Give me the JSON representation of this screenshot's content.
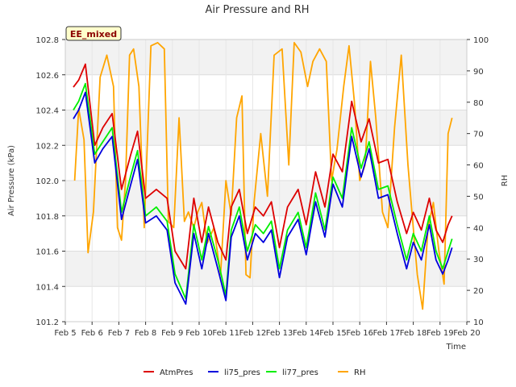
{
  "chart_data": {
    "type": "line",
    "title": "Air Pressure and RH",
    "xlabel": "Time",
    "ylabel": "Air Pressure (kPa)",
    "y2label": "RH",
    "annotation": "EE_mixed",
    "xlim": [
      5,
      20
    ],
    "ylim": [
      101.2,
      102.8
    ],
    "y2lim": [
      10,
      100
    ],
    "x_ticks": [
      {
        "v": 5,
        "label": "Feb 5"
      },
      {
        "v": 6,
        "label": "Feb 6"
      },
      {
        "v": 7,
        "label": "Feb 7"
      },
      {
        "v": 8,
        "label": "Feb 8"
      },
      {
        "v": 9,
        "label": "Feb 9"
      },
      {
        "v": 10,
        "label": "Feb 10"
      },
      {
        "v": 11,
        "label": "Feb 11"
      },
      {
        "v": 12,
        "label": "Feb 12"
      },
      {
        "v": 13,
        "label": "Feb 13"
      },
      {
        "v": 14,
        "label": "Feb 14"
      },
      {
        "v": 15,
        "label": "Feb 15"
      },
      {
        "v": 16,
        "label": "Feb 16"
      },
      {
        "v": 17,
        "label": "Feb 17"
      },
      {
        "v": 18,
        "label": "Feb 18"
      },
      {
        "v": 19,
        "label": "Feb 19"
      },
      {
        "v": 20,
        "label": "Feb 20"
      }
    ],
    "y_ticks": [
      "101.2",
      "101.4",
      "101.6",
      "101.8",
      "102.0",
      "102.2",
      "102.4",
      "102.6",
      "102.8"
    ],
    "y2_ticks": [
      "10",
      "20",
      "30",
      "40",
      "50",
      "60",
      "70",
      "80",
      "90",
      "100"
    ],
    "grid": true,
    "legend_position": "bottom",
    "series": [
      {
        "name": "AtmPres",
        "color": "#dd0000",
        "axis": "left",
        "x": [
          5.3,
          5.5,
          5.75,
          6.1,
          6.4,
          6.75,
          7.1,
          7.45,
          7.7,
          8.0,
          8.4,
          8.8,
          9.1,
          9.5,
          9.8,
          10.1,
          10.35,
          10.7,
          11.0,
          11.2,
          11.5,
          11.8,
          12.1,
          12.4,
          12.7,
          13.0,
          13.3,
          13.7,
          14.0,
          14.35,
          14.7,
          15.0,
          15.35,
          15.7,
          16.05,
          16.35,
          16.7,
          17.05,
          17.4,
          17.75,
          18.0,
          18.3,
          18.6,
          18.85,
          19.1,
          19.3,
          19.45
        ],
        "y": [
          102.53,
          102.57,
          102.66,
          102.2,
          102.3,
          102.38,
          101.95,
          102.15,
          102.28,
          101.9,
          101.95,
          101.9,
          101.6,
          101.5,
          101.9,
          101.65,
          101.85,
          101.65,
          101.55,
          101.85,
          101.95,
          101.7,
          101.85,
          101.8,
          101.88,
          101.62,
          101.85,
          101.95,
          101.75,
          102.05,
          101.85,
          102.15,
          102.05,
          102.45,
          102.22,
          102.35,
          102.1,
          102.12,
          101.88,
          101.7,
          101.82,
          101.72,
          101.9,
          101.72,
          101.65,
          101.75,
          101.8
        ]
      },
      {
        "name": "li75_pres",
        "color": "#0000dd",
        "axis": "left",
        "x": [
          5.3,
          5.5,
          5.75,
          6.1,
          6.4,
          6.75,
          7.1,
          7.45,
          7.7,
          8.0,
          8.4,
          8.8,
          9.1,
          9.5,
          9.8,
          10.1,
          10.35,
          10.7,
          11.0,
          11.2,
          11.5,
          11.8,
          12.1,
          12.4,
          12.7,
          13.0,
          13.3,
          13.7,
          14.0,
          14.35,
          14.7,
          15.0,
          15.35,
          15.7,
          16.05,
          16.35,
          16.7,
          17.05,
          17.4,
          17.75,
          18.0,
          18.3,
          18.6,
          18.85,
          19.1,
          19.3,
          19.45
        ],
        "y": [
          102.35,
          102.4,
          102.5,
          102.1,
          102.18,
          102.25,
          101.78,
          101.98,
          102.12,
          101.76,
          101.8,
          101.72,
          101.42,
          101.3,
          101.7,
          101.5,
          101.7,
          101.5,
          101.32,
          101.68,
          101.8,
          101.55,
          101.7,
          101.65,
          101.72,
          101.45,
          101.68,
          101.78,
          101.58,
          101.88,
          101.68,
          101.98,
          101.85,
          102.25,
          102.02,
          102.18,
          101.9,
          101.92,
          101.7,
          101.5,
          101.65,
          101.55,
          101.75,
          101.55,
          101.47,
          101.55,
          101.62
        ]
      },
      {
        "name": "li77_pres",
        "color": "#00ee00",
        "axis": "left",
        "x": [
          5.3,
          5.5,
          5.75,
          6.1,
          6.4,
          6.75,
          7.1,
          7.45,
          7.7,
          8.0,
          8.4,
          8.8,
          9.1,
          9.5,
          9.8,
          10.1,
          10.35,
          10.7,
          11.0,
          11.2,
          11.5,
          11.8,
          12.1,
          12.4,
          12.7,
          13.0,
          13.3,
          13.7,
          14.0,
          14.35,
          14.7,
          15.0,
          15.35,
          15.7,
          16.05,
          16.35,
          16.7,
          17.05,
          17.4,
          17.75,
          18.0,
          18.3,
          18.6,
          18.85,
          19.1,
          19.3,
          19.45
        ],
        "y": [
          102.4,
          102.45,
          102.55,
          102.15,
          102.22,
          102.3,
          101.82,
          102.03,
          102.17,
          101.8,
          101.85,
          101.77,
          101.47,
          101.33,
          101.75,
          101.55,
          101.74,
          101.55,
          101.35,
          101.72,
          101.85,
          101.6,
          101.75,
          101.7,
          101.77,
          101.5,
          101.72,
          101.82,
          101.62,
          101.93,
          101.72,
          102.02,
          101.9,
          102.3,
          102.07,
          102.22,
          101.95,
          101.97,
          101.75,
          101.55,
          101.7,
          101.6,
          101.8,
          101.6,
          101.5,
          101.6,
          101.67
        ]
      },
      {
        "name": "RH",
        "color": "#ffa500",
        "axis": "right",
        "x": [
          5.35,
          5.5,
          5.7,
          5.85,
          6.05,
          6.3,
          6.55,
          6.8,
          6.95,
          7.1,
          7.25,
          7.4,
          7.55,
          7.75,
          7.95,
          8.2,
          8.45,
          8.7,
          8.85,
          9.05,
          9.25,
          9.45,
          9.6,
          9.8,
          9.95,
          10.1,
          10.3,
          10.55,
          10.8,
          11.0,
          11.2,
          11.4,
          11.6,
          11.75,
          11.9,
          12.05,
          12.3,
          12.55,
          12.8,
          13.1,
          13.35,
          13.55,
          13.8,
          14.05,
          14.25,
          14.5,
          14.75,
          14.95,
          15.15,
          15.4,
          15.6,
          15.8,
          16.0,
          16.2,
          16.4,
          16.6,
          16.85,
          17.05,
          17.3,
          17.55,
          17.8,
          17.95,
          18.15,
          18.35,
          18.55,
          18.75,
          18.95,
          19.15,
          19.3,
          19.45
        ],
        "y": [
          55,
          78,
          68,
          32,
          45,
          88,
          95,
          85,
          40,
          36,
          55,
          95,
          97,
          85,
          40,
          98,
          99,
          97,
          42,
          40,
          75,
          42,
          45,
          40,
          45,
          48,
          35,
          40,
          25,
          55,
          44,
          75,
          82,
          25,
          24,
          48,
          70,
          50,
          95,
          97,
          60,
          99,
          96,
          85,
          93,
          97,
          93,
          55,
          65,
          85,
          98,
          80,
          55,
          60,
          93,
          75,
          45,
          40,
          72,
          95,
          60,
          45,
          25,
          14,
          40,
          48,
          33,
          22,
          70,
          75
        ]
      }
    ]
  }
}
